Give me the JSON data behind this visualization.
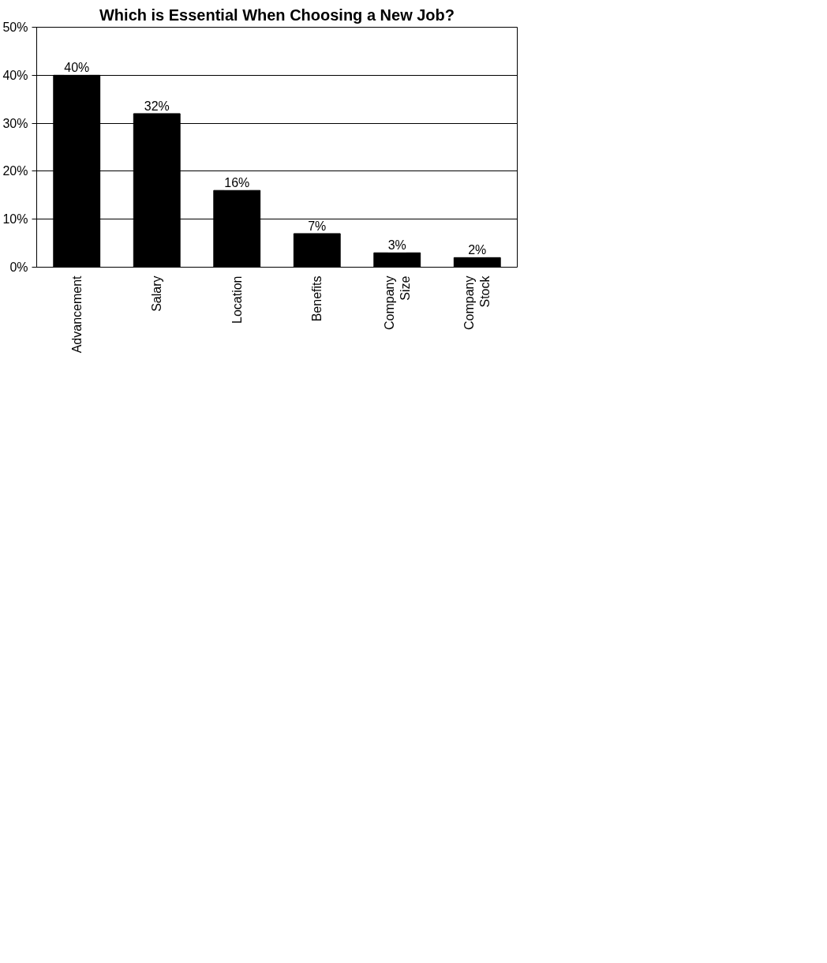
{
  "chart_data": {
    "type": "bar",
    "title": "Which is Essential When Choosing a New Job?",
    "categories": [
      "Advancement",
      "Salary",
      "Location",
      "Benefits",
      "Company Size",
      "Company Stock"
    ],
    "values": [
      40,
      32,
      16,
      7,
      3,
      2
    ],
    "color": "#000000",
    "value_labels": [
      "40%",
      "32%",
      "16%",
      "7%",
      "3%",
      "2%"
    ],
    "ylim": [
      0,
      50
    ],
    "yticks": [
      {
        "value": 0,
        "label": "0%"
      },
      {
        "value": 10,
        "label": "10%"
      },
      {
        "value": 20,
        "label": "20%"
      },
      {
        "value": 30,
        "label": "30%"
      },
      {
        "value": 40,
        "label": "40%"
      },
      {
        "value": 50,
        "label": "50%"
      }
    ],
    "grid": "y"
  }
}
